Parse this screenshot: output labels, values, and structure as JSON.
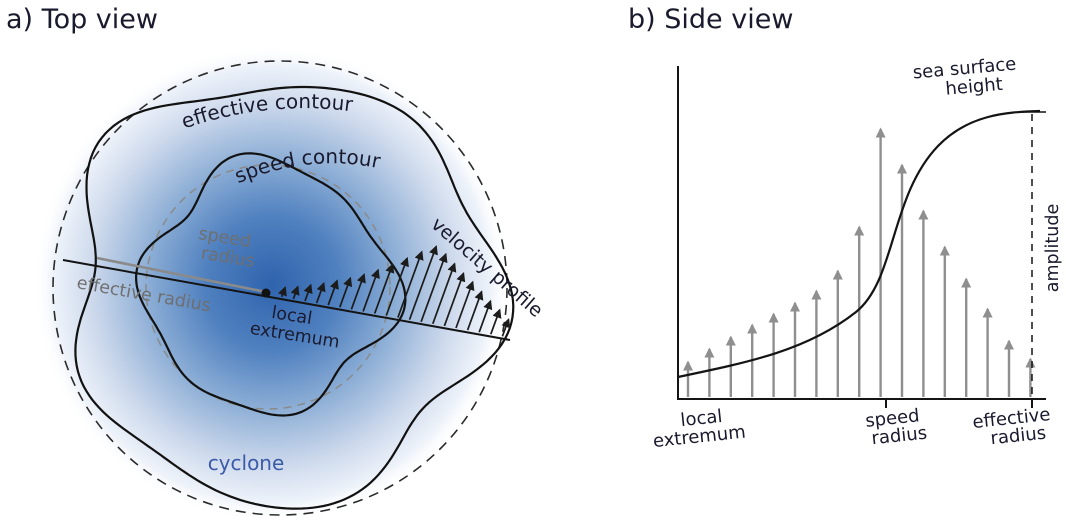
{
  "figure": {
    "panel_a": {
      "title": "a) Top view",
      "labels": {
        "effective_contour": "effective contour",
        "speed_contour": "speed contour",
        "speed_word": "speed",
        "radius_word": "radius",
        "effective_radius": "effective radius",
        "local_word": "local",
        "extremum_word": "extremum",
        "velocity_profile": "velocity profile",
        "cyclone": "cyclone"
      },
      "velocity_arrows": [
        10,
        13,
        17,
        21,
        26,
        31,
        37,
        44,
        52,
        61,
        70,
        78,
        72,
        64,
        56,
        49,
        41,
        33,
        26,
        18
      ]
    },
    "panel_b": {
      "title": "b) Side view",
      "labels": {
        "sea_surface": "sea surface",
        "height": "height",
        "amplitude": "amplitude",
        "local": "local",
        "extremum": "extremum",
        "speed": "speed",
        "radius": "radius",
        "effective": "effective",
        "radius2": "radius"
      },
      "velocity_arrows": [
        35,
        48,
        60,
        72,
        83,
        94,
        106,
        126,
        170,
        268,
        232,
        186,
        150,
        118,
        88,
        56,
        38
      ]
    },
    "colors": {
      "cyclone_core": "#2f63ad",
      "text_dark": "#1a1a2e",
      "text_gray": "#6f6f6f",
      "cyclone_label": "#3b5aa8",
      "arrow_dark": "#1c1c1c",
      "arrow_gray": "#8f8f8f"
    }
  }
}
